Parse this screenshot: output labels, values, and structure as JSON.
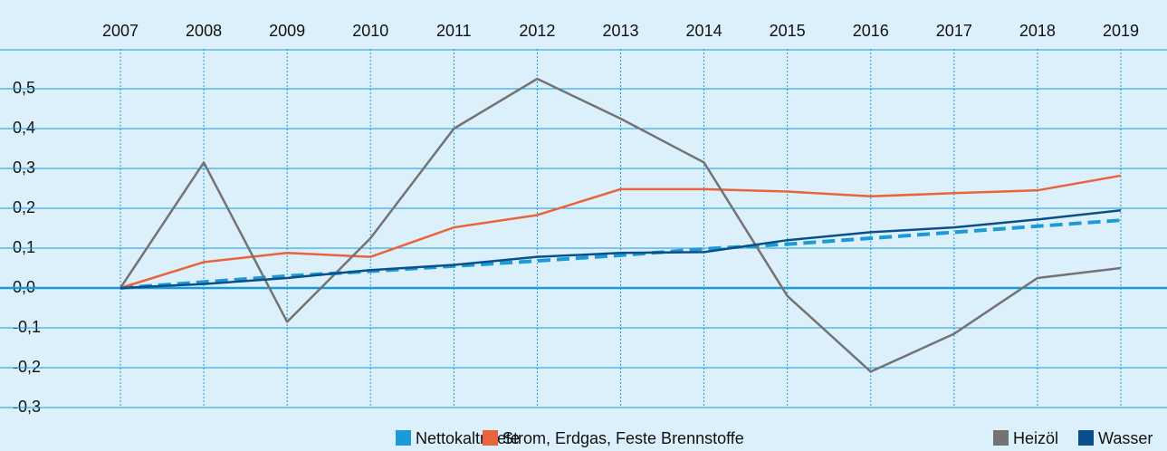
{
  "chart_data": {
    "type": "line",
    "categories": [
      "2007",
      "2008",
      "2009",
      "2010",
      "2011",
      "2012",
      "2013",
      "2014",
      "2015",
      "2016",
      "2017",
      "2018",
      "2019"
    ],
    "series": [
      {
        "name": "Nettokaltmiete",
        "color": "#1b9ad7",
        "dashed": true,
        "values": [
          0,
          0.015,
          0.03,
          0.042,
          0.055,
          0.068,
          0.082,
          0.098,
          0.11,
          0.125,
          0.14,
          0.155,
          0.17
        ]
      },
      {
        "name": "Strom, Erdgas, Feste Brennstoffe",
        "color": "#e8643c",
        "dashed": false,
        "values": [
          0,
          0.065,
          0.088,
          0.078,
          0.152,
          0.183,
          0.248,
          0.248,
          0.242,
          0.23,
          0.238,
          0.245,
          0.282
        ]
      },
      {
        "name": "Heizöl",
        "color": "#737373",
        "dashed": false,
        "values": [
          0,
          0.315,
          -0.085,
          0.125,
          0.4,
          0.525,
          0.425,
          0.315,
          -0.02,
          -0.21,
          -0.115,
          0.025,
          0.05
        ]
      },
      {
        "name": "Wasser",
        "color": "#0b4f8a",
        "dashed": false,
        "values": [
          0,
          0.01,
          0.025,
          0.045,
          0.058,
          0.078,
          0.088,
          0.09,
          0.12,
          0.14,
          0.152,
          0.172,
          0.195
        ]
      }
    ],
    "ylim": [
      -0.3,
      0.6
    ],
    "yticks": [
      {
        "value": -0.3,
        "label": "-0,3"
      },
      {
        "value": -0.2,
        "label": "-0,2"
      },
      {
        "value": -0.1,
        "label": "-0,1"
      },
      {
        "value": 0,
        "label": "0,0"
      },
      {
        "value": 0.1,
        "label": "0,1"
      },
      {
        "value": 0.2,
        "label": "0,2"
      },
      {
        "value": 0.3,
        "label": "0,3"
      },
      {
        "value": 0.4,
        "label": "0,4"
      },
      {
        "value": 0.5,
        "label": "0,5"
      }
    ],
    "grid": true
  }
}
